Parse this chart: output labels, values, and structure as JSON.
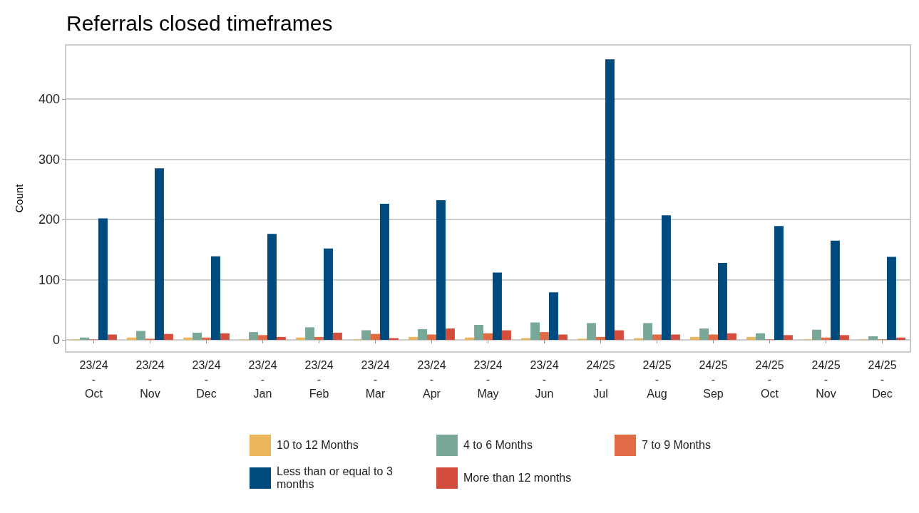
{
  "chart_data": {
    "type": "bar",
    "title": "Referrals closed timeframes",
    "ylabel": "Count",
    "categories": [
      "23/24\n-\nOct",
      "23/24\n-\nNov",
      "23/24\n-\nDec",
      "23/24\n-\nJan",
      "23/24\n-\nFeb",
      "23/24\n-\nMar",
      "23/24\n-\nApr",
      "23/24\n-\nMay",
      "23/24\n-\nJun",
      "24/25\n-\nJul",
      "24/25\n-\nAug",
      "24/25\n-\nSep",
      "24/25\n-\nOct",
      "24/25\n-\nNov",
      "24/25\n-\nDec"
    ],
    "series": [
      {
        "name": "10 to 12 Months",
        "color": "#ebb65b",
        "values": [
          1,
          4,
          4,
          1,
          4,
          1,
          5,
          4,
          3,
          2,
          3,
          5,
          5,
          1,
          1
        ]
      },
      {
        "name": "4 to 6 Months",
        "color": "#7aa898",
        "values": [
          4,
          15,
          12,
          13,
          21,
          16,
          18,
          25,
          29,
          28,
          28,
          19,
          11,
          17,
          6
        ]
      },
      {
        "name": "7 to 9 Months",
        "color": "#e06b45",
        "values": [
          1,
          2,
          4,
          8,
          5,
          10,
          9,
          11,
          13,
          5,
          9,
          9,
          1,
          4,
          1
        ]
      },
      {
        "name": "Less than or equal to 3 months",
        "color": "#004b7d",
        "values": [
          202,
          285,
          139,
          176,
          152,
          226,
          232,
          112,
          79,
          466,
          207,
          128,
          189,
          165,
          138
        ]
      },
      {
        "name": "More than 12 months",
        "color": "#d44d3c",
        "values": [
          9,
          10,
          11,
          5,
          12,
          3,
          19,
          16,
          9,
          16,
          9,
          11,
          8,
          8,
          4
        ]
      }
    ],
    "ylim": [
      -20,
      490
    ],
    "yticks": [
      0,
      100,
      200,
      300,
      400
    ],
    "grid": "y",
    "legend": "bottom"
  }
}
